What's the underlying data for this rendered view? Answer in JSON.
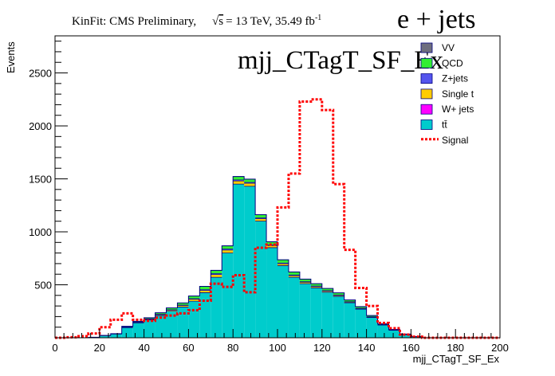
{
  "header": {
    "kinfit_label": "KinFit: CMS Preliminary,",
    "energy_sqrt": "s",
    "energy_rest": "= 13 TeV, 35.49 fb",
    "lumi_exp": "-1",
    "channel": "e + jets"
  },
  "chart_data": {
    "type": "bar",
    "title": "mjj_CTagT_SF_Ex",
    "xlabel": "mjj_CTagT_SF_Ex",
    "ylabel": "Events",
    "xlim": [
      0,
      200
    ],
    "ylim": [
      0,
      2850
    ],
    "x_ticks": [
      0,
      20,
      40,
      60,
      80,
      100,
      120,
      140,
      160,
      180,
      200
    ],
    "y_ticks": [
      500,
      1000,
      1500,
      2000,
      2500
    ],
    "bin_edges": [
      0,
      5,
      10,
      15,
      20,
      25,
      30,
      35,
      40,
      45,
      50,
      55,
      60,
      65,
      70,
      75,
      80,
      85,
      90,
      95,
      100,
      105,
      110,
      115,
      120,
      125,
      130,
      135,
      140,
      145,
      150,
      155,
      160,
      165,
      170,
      175,
      180,
      185,
      190,
      195,
      200
    ],
    "stacked": [
      {
        "name": "tt̄",
        "color": "#00cccc",
        "values": [
          0,
          0,
          0,
          5,
          20,
          35,
          95,
          140,
          170,
          210,
          250,
          290,
          345,
          425,
          570,
          800,
          1450,
          1430,
          1100,
          850,
          680,
          570,
          510,
          470,
          430,
          390,
          330,
          270,
          190,
          120,
          70,
          30,
          10,
          0,
          0,
          0,
          0,
          0,
          0,
          0
        ]
      },
      {
        "name": "W+ jets",
        "color": "#ff00ff",
        "values": [
          0,
          0,
          0,
          0,
          0,
          0,
          0,
          0,
          0,
          0,
          0,
          0,
          0,
          0,
          0,
          0,
          0,
          0,
          0,
          0,
          0,
          0,
          0,
          0,
          0,
          0,
          0,
          0,
          0,
          0,
          0,
          0,
          0,
          0,
          0,
          0,
          0,
          0,
          0,
          0
        ]
      },
      {
        "name": "Single t",
        "color": "#ffcc00",
        "values": [
          0,
          0,
          0,
          0,
          1,
          2,
          5,
          5,
          6,
          8,
          10,
          14,
          18,
          22,
          26,
          28,
          30,
          28,
          24,
          20,
          18,
          16,
          14,
          12,
          10,
          9,
          7,
          6,
          5,
          3,
          2,
          1,
          0,
          0,
          0,
          0,
          0,
          0,
          0,
          0
        ]
      },
      {
        "name": "Z+jets",
        "color": "#5555ee",
        "values": [
          0,
          0,
          0,
          0,
          0,
          0,
          2,
          2,
          3,
          4,
          5,
          5,
          6,
          8,
          10,
          10,
          10,
          9,
          8,
          8,
          8,
          7,
          6,
          6,
          5,
          5,
          4,
          3,
          3,
          2,
          1,
          1,
          0,
          0,
          0,
          0,
          0,
          0,
          0,
          0
        ]
      },
      {
        "name": "QCD",
        "color": "#33ee33",
        "values": [
          0,
          0,
          0,
          0,
          1,
          2,
          6,
          8,
          10,
          14,
          17,
          20,
          25,
          30,
          30,
          30,
          32,
          30,
          30,
          28,
          30,
          28,
          24,
          22,
          20,
          20,
          16,
          15,
          12,
          8,
          5,
          3,
          0,
          0,
          0,
          0,
          0,
          0,
          0,
          0
        ]
      },
      {
        "name": "VV",
        "color": "#6e6e7e",
        "values": [
          0,
          0,
          0,
          0,
          0,
          0,
          0,
          0,
          0,
          0,
          0,
          0,
          0,
          0,
          0,
          0,
          0,
          0,
          0,
          0,
          0,
          0,
          0,
          0,
          0,
          0,
          0,
          0,
          0,
          0,
          0,
          0,
          0,
          0,
          0,
          0,
          0,
          0,
          0,
          0
        ]
      }
    ],
    "signal": {
      "name": "Signal",
      "color": "#ff0000",
      "values": [
        0,
        5,
        15,
        40,
        100,
        170,
        230,
        170,
        160,
        190,
        210,
        230,
        260,
        350,
        510,
        480,
        590,
        430,
        850,
        880,
        1230,
        1550,
        2230,
        2250,
        2150,
        1450,
        830,
        470,
        300,
        140,
        90,
        30,
        10,
        0,
        0,
        0,
        0,
        0,
        0,
        0
      ]
    },
    "legend": {
      "placement": "top-right",
      "entries": [
        "VV",
        "QCD",
        "Z+jets",
        "Single t",
        "W+ jets",
        "tt̄",
        "Signal"
      ]
    },
    "grid": false
  }
}
